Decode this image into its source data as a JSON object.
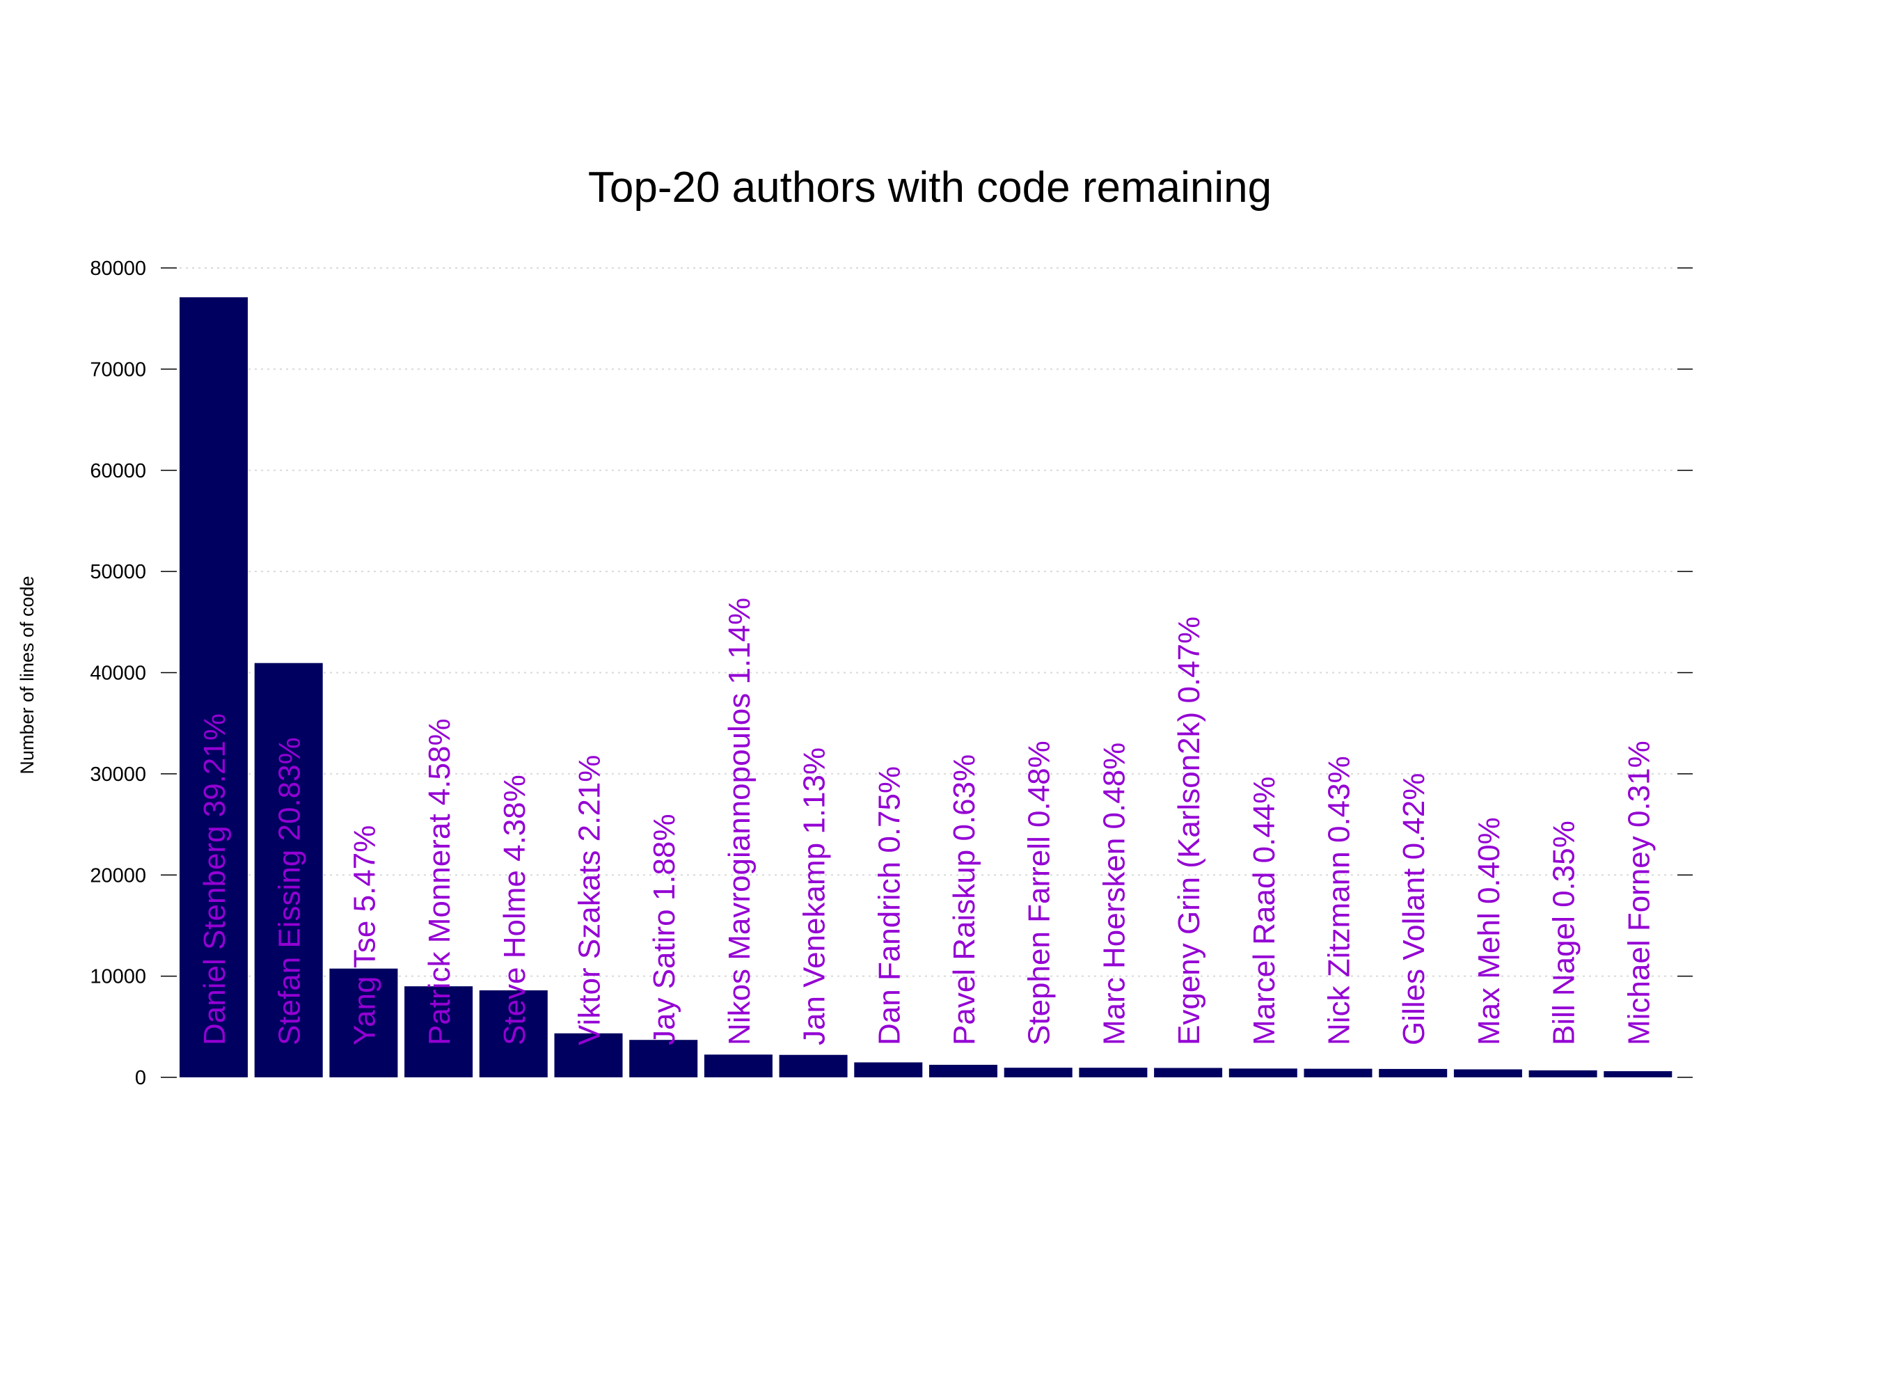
{
  "chart_data": {
    "type": "bar",
    "title": "Top-20 authors with code remaining",
    "xlabel": "",
    "ylabel": "Number of lines of code",
    "ylim": [
      0,
      80000
    ],
    "yticks": [
      0,
      10000,
      20000,
      30000,
      40000,
      50000,
      60000,
      70000,
      80000
    ],
    "grid": true,
    "legend": "none",
    "categories": [
      "Daniel Stenberg 39.21%",
      "Stefan Eissing 20.83%",
      "Yang Tse 5.47%",
      "Patrick Monnerat 4.58%",
      "Steve Holme 4.38%",
      "Viktor Szakats 2.21%",
      "Jay Satiro 1.88%",
      "Nikos Mavrogiannopoulos 1.14%",
      "Jan Venekamp 1.13%",
      "Dan Fandrich 0.75%",
      "Pavel Raiskup 0.63%",
      "Stephen Farrell 0.48%",
      "Marc Hoersken 0.48%",
      "Evgeny Grin (Karlson2k) 0.47%",
      "Marcel Raad 0.44%",
      "Nick Zitzmann 0.43%",
      "Gilles Vollant 0.42%",
      "Max Mehl 0.40%",
      "Bill Nagel 0.35%",
      "Michael Forney 0.31%"
    ],
    "values": [
      77100,
      40950,
      10750,
      9000,
      8600,
      4350,
      3700,
      2250,
      2220,
      1480,
      1240,
      950,
      950,
      930,
      870,
      850,
      830,
      790,
      690,
      610
    ],
    "colors": {
      "bar": "#000060",
      "label": "#9400d3",
      "grid": "#d9d9d9",
      "axis": "#000000"
    }
  }
}
